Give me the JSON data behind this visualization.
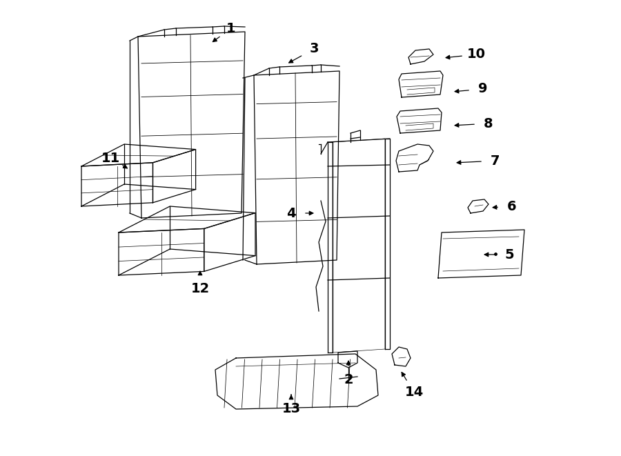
{
  "bg_color": "#ffffff",
  "line_color": "#000000",
  "figsize": [
    9.0,
    6.61
  ],
  "dpi": 100,
  "font_size_label": 14,
  "label_data": {
    "1": [
      3.35,
      6.2,
      3.05,
      5.98
    ],
    "2": [
      5.05,
      1.1,
      5.05,
      1.42
    ],
    "3": [
      4.55,
      5.9,
      4.15,
      5.68
    ],
    "4": [
      4.22,
      3.52,
      4.58,
      3.52
    ],
    "5": [
      7.38,
      2.92,
      6.98,
      2.92
    ],
    "6": [
      7.42,
      3.62,
      7.1,
      3.6
    ],
    "7": [
      7.18,
      4.28,
      6.58,
      4.25
    ],
    "8": [
      7.08,
      4.82,
      6.55,
      4.79
    ],
    "9": [
      7.0,
      5.32,
      6.55,
      5.28
    ],
    "10": [
      6.9,
      5.82,
      6.42,
      5.77
    ],
    "11": [
      1.6,
      4.32,
      1.88,
      4.15
    ],
    "12": [
      2.9,
      2.42,
      2.9,
      2.72
    ],
    "13": [
      4.22,
      0.68,
      4.22,
      0.92
    ],
    "14": [
      6.0,
      0.92,
      5.8,
      1.25
    ]
  }
}
